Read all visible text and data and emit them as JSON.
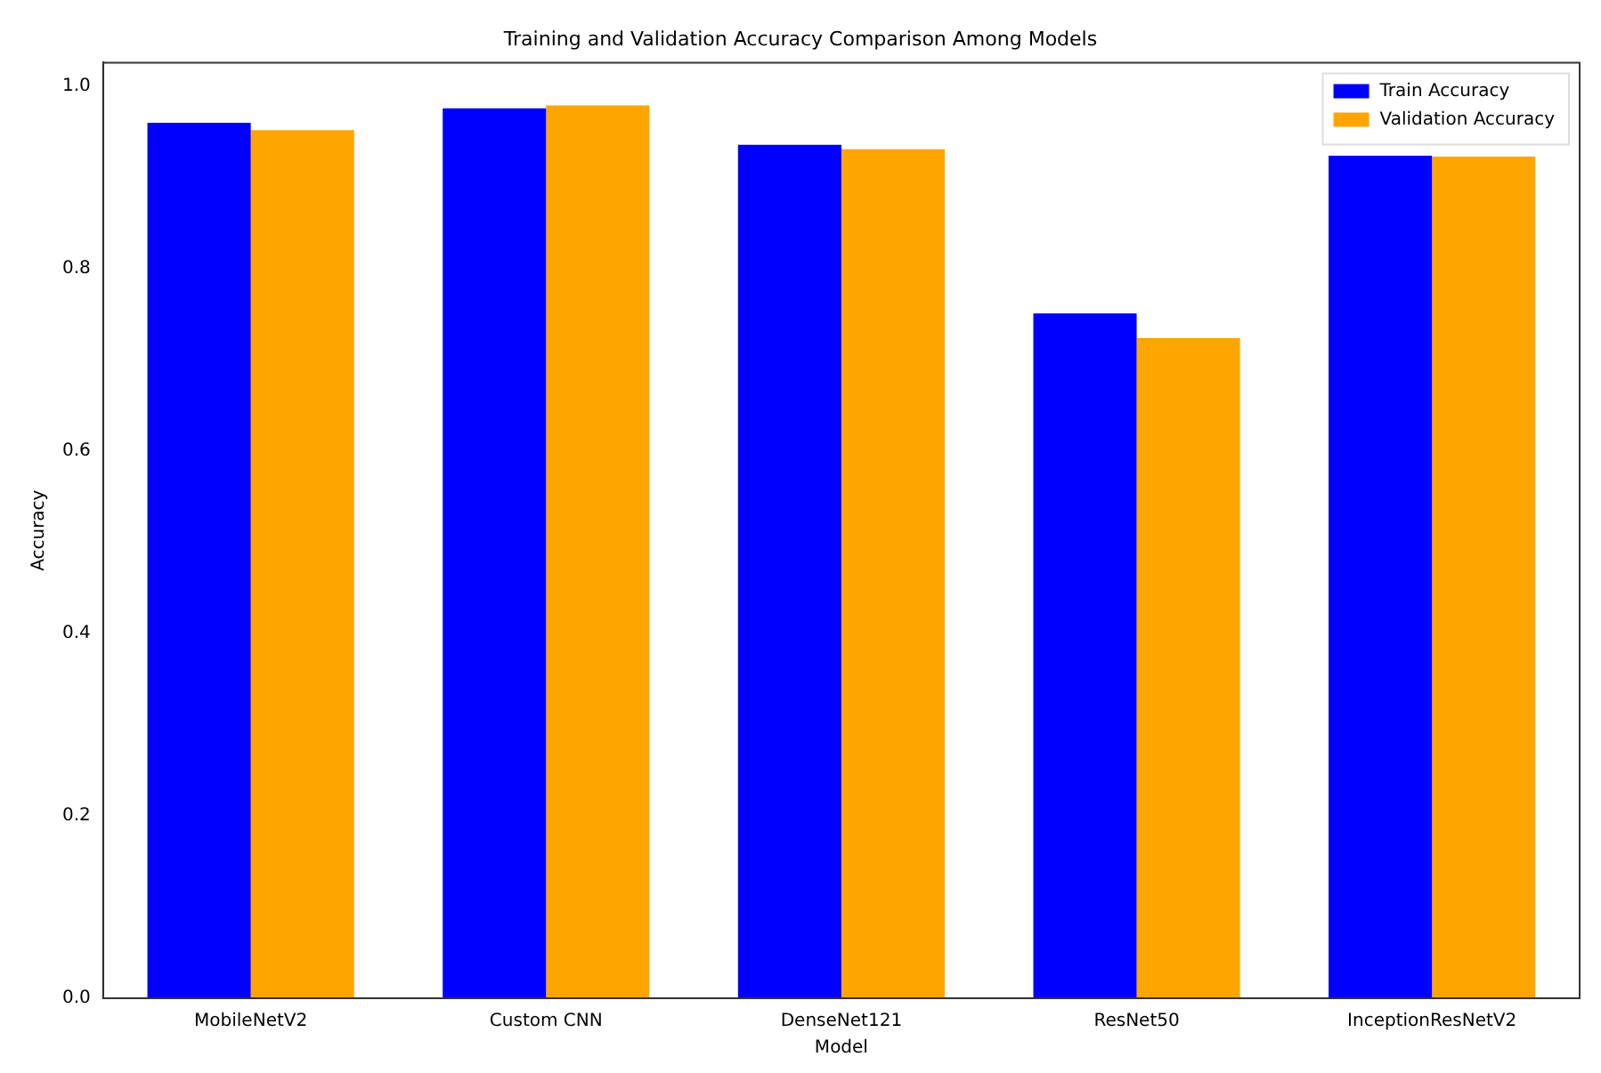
{
  "chart_data": {
    "type": "bar",
    "title": "Training and Validation Accuracy Comparison Among Models",
    "xlabel": "Model",
    "ylabel": "Accuracy",
    "categories": [
      "MobileNetV2",
      "Custom CNN",
      "DenseNet121",
      "ResNet50",
      "InceptionResNetV2"
    ],
    "series": [
      {
        "name": "Train Accuracy",
        "color": "#0000ff",
        "values": [
          0.96,
          0.976,
          0.936,
          0.751,
          0.924
        ]
      },
      {
        "name": "Validation Accuracy",
        "color": "#ffa500",
        "values": [
          0.952,
          0.979,
          0.931,
          0.724,
          0.923
        ]
      }
    ],
    "ylim": [
      0,
      1.026
    ],
    "yticks": [
      {
        "value": 0,
        "label": "0.0"
      },
      0.2,
      0.4,
      0.6,
      0.8,
      {
        "value": 1,
        "label": "1.0"
      }
    ],
    "grid": false,
    "legend": "top right"
  }
}
